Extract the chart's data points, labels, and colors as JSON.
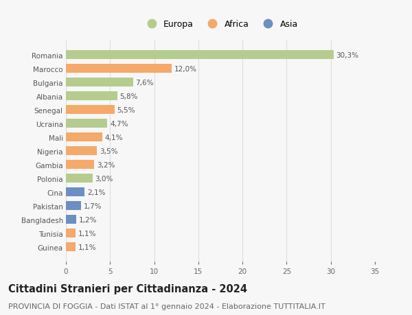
{
  "countries": [
    "Romania",
    "Marocco",
    "Bulgaria",
    "Albania",
    "Senegal",
    "Ucraina",
    "Mali",
    "Nigeria",
    "Gambia",
    "Polonia",
    "Cina",
    "Pakistan",
    "Bangladesh",
    "Tunisia",
    "Guinea"
  ],
  "values": [
    30.3,
    12.0,
    7.6,
    5.8,
    5.5,
    4.7,
    4.1,
    3.5,
    3.2,
    3.0,
    2.1,
    1.7,
    1.2,
    1.1,
    1.1
  ],
  "labels": [
    "30,3%",
    "12,0%",
    "7,6%",
    "5,8%",
    "5,5%",
    "4,7%",
    "4,1%",
    "3,5%",
    "3,2%",
    "3,0%",
    "2,1%",
    "1,7%",
    "1,2%",
    "1,1%",
    "1,1%"
  ],
  "continents": [
    "Europa",
    "Africa",
    "Europa",
    "Europa",
    "Africa",
    "Europa",
    "Africa",
    "Africa",
    "Africa",
    "Europa",
    "Asia",
    "Asia",
    "Asia",
    "Africa",
    "Africa"
  ],
  "colors": {
    "Europa": "#b5cc8e",
    "Africa": "#f5a96a",
    "Asia": "#6b8fc2"
  },
  "xlim": [
    0,
    35
  ],
  "xticks": [
    0,
    5,
    10,
    15,
    20,
    25,
    30,
    35
  ],
  "title": "Cittadini Stranieri per Cittadinanza - 2024",
  "subtitle": "PROVINCIA DI FOGGIA - Dati ISTAT al 1° gennaio 2024 - Elaborazione TUTTITALIA.IT",
  "background_color": "#f7f7f7",
  "grid_color": "#dddddd",
  "bar_height": 0.65,
  "title_fontsize": 10.5,
  "subtitle_fontsize": 8,
  "label_fontsize": 7.5,
  "tick_fontsize": 7.5,
  "legend_fontsize": 9
}
